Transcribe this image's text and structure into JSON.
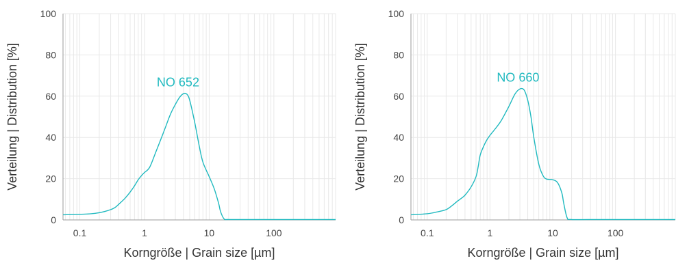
{
  "chart_data": [
    {
      "type": "line",
      "series": [
        {
          "name": "NO 652",
          "x": [
            0.055,
            0.1,
            0.15,
            0.2,
            0.25,
            0.3,
            0.35,
            0.4,
            0.5,
            0.6,
            0.7,
            0.8,
            0.9,
            1.0,
            1.2,
            1.5,
            2.0,
            2.5,
            3.0,
            3.5,
            4.0,
            4.5,
            5.0,
            6.0,
            7.0,
            8.0,
            10.0,
            12.0,
            14.0,
            15.0,
            17.0,
            20.0,
            50.0,
            100.0,
            200.0,
            500.0,
            900.0
          ],
          "values": [
            2.5,
            2.7,
            3.0,
            3.5,
            4.2,
            5.0,
            6.0,
            7.6,
            10.5,
            13.5,
            16.5,
            19.5,
            21.5,
            23.0,
            25.5,
            33.0,
            43.0,
            51.0,
            56.0,
            59.5,
            61.2,
            61.0,
            58.0,
            47.0,
            36.0,
            28.0,
            21.0,
            15.0,
            8.0,
            4.0,
            0.5,
            0.2,
            0.2,
            0.2,
            0.2,
            0.2,
            0.2
          ]
        }
      ],
      "xlabel": "Korngröße | Grain size [µm]",
      "ylabel": "Verteilung | Distribution [%]",
      "x_scale": "log",
      "xlim": [
        0.055,
        900
      ],
      "ylim": [
        0,
        100
      ],
      "x_ticks": [
        0.1,
        1,
        10,
        100
      ],
      "x_tick_labels": [
        "0.1",
        "1",
        "10",
        "100"
      ],
      "y_ticks": [
        0,
        20,
        40,
        60,
        80,
        100
      ],
      "y_tick_labels": [
        "0",
        "20",
        "40",
        "60",
        "80",
        "100"
      ],
      "grid": true,
      "legend": "none",
      "annotations": [
        {
          "text": "NO 652",
          "x": 3.3,
          "y": 64.8
        }
      ],
      "line_color": "#1fb9bf"
    },
    {
      "type": "line",
      "series": [
        {
          "name": "NO 660",
          "x": [
            0.055,
            0.1,
            0.15,
            0.2,
            0.25,
            0.3,
            0.35,
            0.4,
            0.5,
            0.6,
            0.65,
            0.7,
            0.8,
            0.9,
            1.0,
            1.2,
            1.5,
            2.0,
            2.5,
            3.0,
            3.5,
            4.0,
            4.5,
            5.0,
            6.0,
            7.0,
            8.0,
            10.0,
            12.0,
            14.0,
            15.0,
            17.0,
            20.0,
            50.0,
            100.0,
            500.0,
            900.0
          ],
          "values": [
            2.5,
            3.0,
            4.0,
            5.0,
            7.0,
            9.0,
            10.5,
            12.0,
            16.0,
            21.0,
            26.0,
            31.5,
            36.0,
            39.0,
            41.0,
            44.0,
            48.0,
            55.0,
            61.0,
            63.5,
            63.0,
            58.0,
            50.0,
            40.0,
            27.0,
            21.5,
            19.8,
            19.5,
            18.0,
            13.0,
            8.0,
            1.0,
            0.2,
            0.2,
            0.2,
            0.2,
            0.2
          ]
        }
      ],
      "xlabel": "Korngröße | Grain size [µm]",
      "ylabel": "Verteilung | Distribution [%]",
      "x_scale": "log",
      "xlim": [
        0.055,
        900
      ],
      "ylim": [
        0,
        100
      ],
      "x_ticks": [
        0.1,
        1,
        10,
        100
      ],
      "x_tick_labels": [
        "0.1",
        "1",
        "10",
        "100"
      ],
      "y_ticks": [
        0,
        20,
        40,
        60,
        80,
        100
      ],
      "y_tick_labels": [
        "0",
        "20",
        "40",
        "60",
        "80",
        "100"
      ],
      "grid": true,
      "legend": "none",
      "annotations": [
        {
          "text": "NO 660",
          "x": 2.8,
          "y": 67.0
        }
      ],
      "line_color": "#1fb9bf"
    }
  ]
}
